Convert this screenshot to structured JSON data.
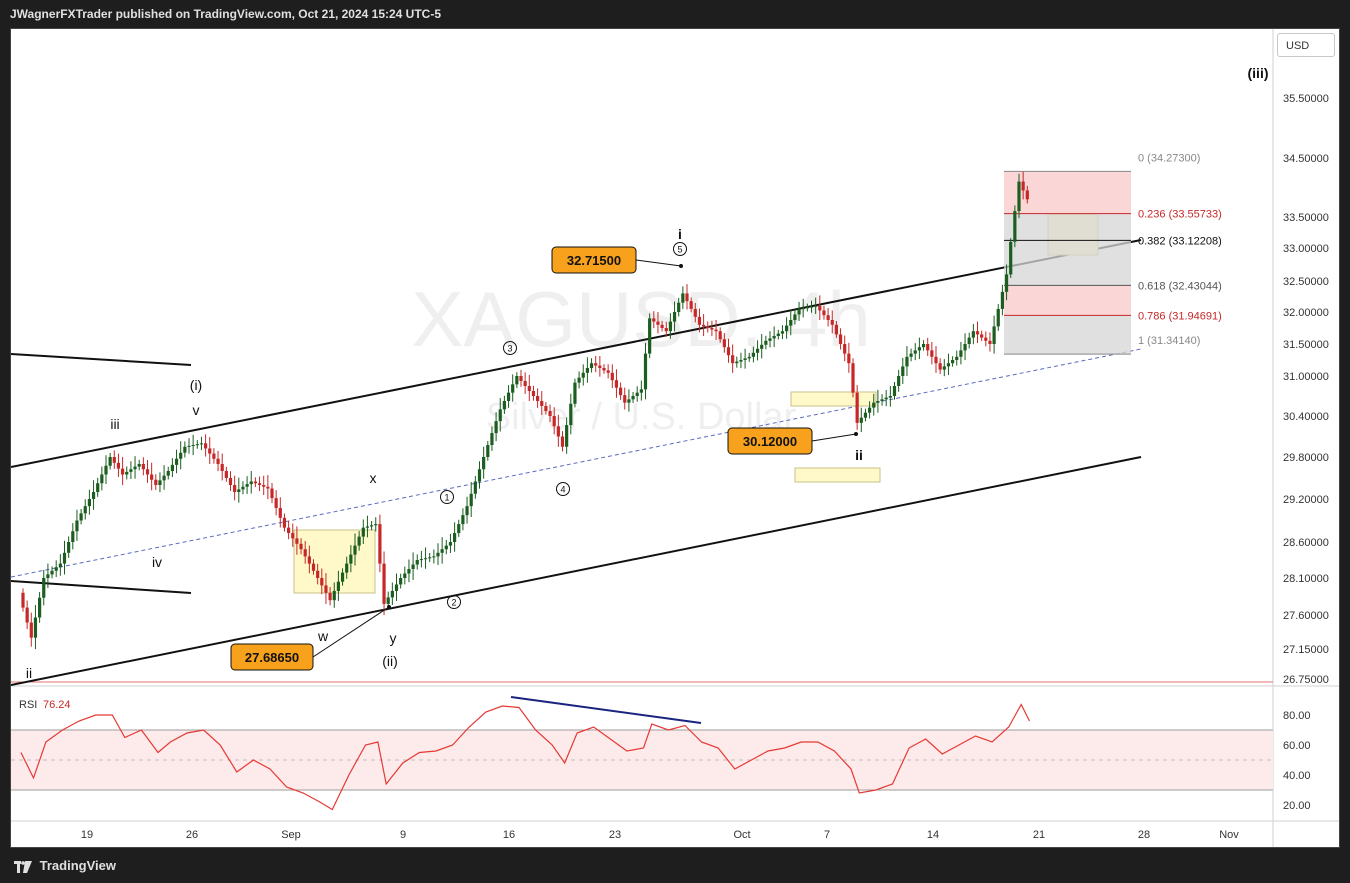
{
  "header": {
    "text": "JWagnerFXTrader published on TradingView.com, Oct 21, 2024 15:24 UTC-5"
  },
  "footer": {
    "brand": "TradingView"
  },
  "currency": "USD",
  "watermark": {
    "symbol": "XAGUSD, 4h",
    "name": "Silver / U.S. Dollar"
  },
  "colors": {
    "up": "#1b5e20",
    "down": "#c62828",
    "rsi": "#e53935",
    "fib_red": "#f8c8c8",
    "fib_gray": "#d6d6d6",
    "highlight": "#fff8c8",
    "divergence": "#1a237e"
  },
  "chart_data": {
    "type": "candlestick",
    "symbol": "XAGUSD",
    "timeframe": "4h",
    "y_ticks": [
      "35.50000",
      "34.50000",
      "33.50000",
      "33.00000",
      "32.50000",
      "32.00000",
      "31.50000",
      "31.00000",
      "30.40000",
      "29.80000",
      "29.20000",
      "28.60000",
      "28.10000",
      "27.60000",
      "27.15000",
      "26.75000"
    ],
    "x_ticks": [
      "19",
      "26",
      "Sep",
      "9",
      "16",
      "23",
      "Oct",
      "7",
      "14",
      "21",
      "28",
      "Nov"
    ],
    "price_path": [
      {
        "i": 0,
        "p": 27.9
      },
      {
        "i": 3,
        "p": 27.3
      },
      {
        "i": 6,
        "p": 28.1
      },
      {
        "i": 10,
        "p": 28.3
      },
      {
        "i": 14,
        "p": 28.9
      },
      {
        "i": 18,
        "p": 29.3
      },
      {
        "i": 22,
        "p": 29.8
      },
      {
        "i": 25,
        "p": 29.55
      },
      {
        "i": 29,
        "p": 29.7
      },
      {
        "i": 33,
        "p": 29.4
      },
      {
        "i": 36,
        "p": 29.6
      },
      {
        "i": 40,
        "p": 29.95
      },
      {
        "i": 44,
        "p": 30.0
      },
      {
        "i": 48,
        "p": 29.7
      },
      {
        "i": 52,
        "p": 29.3
      },
      {
        "i": 56,
        "p": 29.45
      },
      {
        "i": 60,
        "p": 29.35
      },
      {
        "i": 64,
        "p": 28.8
      },
      {
        "i": 68,
        "p": 28.5
      },
      {
        "i": 72,
        "p": 28.1
      },
      {
        "i": 75,
        "p": 27.8
      },
      {
        "i": 79,
        "p": 28.3
      },
      {
        "i": 83,
        "p": 28.8
      },
      {
        "i": 86,
        "p": 28.85
      },
      {
        "i": 88,
        "p": 27.75
      },
      {
        "i": 92,
        "p": 28.1
      },
      {
        "i": 96,
        "p": 28.35
      },
      {
        "i": 100,
        "p": 28.4
      },
      {
        "i": 104,
        "p": 28.6
      },
      {
        "i": 108,
        "p": 29.1
      },
      {
        "i": 112,
        "p": 29.8
      },
      {
        "i": 116,
        "p": 30.5
      },
      {
        "i": 120,
        "p": 31.0
      },
      {
        "i": 124,
        "p": 30.7
      },
      {
        "i": 128,
        "p": 30.4
      },
      {
        "i": 131,
        "p": 29.95
      },
      {
        "i": 134,
        "p": 30.9
      },
      {
        "i": 138,
        "p": 31.2
      },
      {
        "i": 142,
        "p": 31.05
      },
      {
        "i": 146,
        "p": 30.6
      },
      {
        "i": 150,
        "p": 30.8
      },
      {
        "i": 152,
        "p": 31.9
      },
      {
        "i": 156,
        "p": 31.7
      },
      {
        "i": 160,
        "p": 32.3
      },
      {
        "i": 164,
        "p": 31.8
      },
      {
        "i": 168,
        "p": 31.7
      },
      {
        "i": 172,
        "p": 31.2
      },
      {
        "i": 176,
        "p": 31.3
      },
      {
        "i": 180,
        "p": 31.55
      },
      {
        "i": 184,
        "p": 31.7
      },
      {
        "i": 188,
        "p": 32.05
      },
      {
        "i": 192,
        "p": 32.1
      },
      {
        "i": 196,
        "p": 31.8
      },
      {
        "i": 200,
        "p": 31.2
      },
      {
        "i": 202,
        "p": 30.3
      },
      {
        "i": 206,
        "p": 30.6
      },
      {
        "i": 210,
        "p": 30.7
      },
      {
        "i": 214,
        "p": 31.3
      },
      {
        "i": 218,
        "p": 31.5
      },
      {
        "i": 222,
        "p": 31.1
      },
      {
        "i": 226,
        "p": 31.3
      },
      {
        "i": 230,
        "p": 31.7
      },
      {
        "i": 234,
        "p": 31.5
      },
      {
        "i": 238,
        "p": 32.6
      },
      {
        "i": 241,
        "p": 34.1
      },
      {
        "i": 243,
        "p": 33.8
      }
    ],
    "rsi": {
      "label": "RSI",
      "value": "76.24",
      "ticks": [
        "80.00",
        "60.00",
        "40.00",
        "20.00"
      ],
      "upper": 70,
      "lower": 30,
      "path": [
        {
          "i": 0,
          "p": 55
        },
        {
          "i": 3,
          "p": 38
        },
        {
          "i": 6,
          "p": 62
        },
        {
          "i": 10,
          "p": 70
        },
        {
          "i": 14,
          "p": 76
        },
        {
          "i": 18,
          "p": 80
        },
        {
          "i": 22,
          "p": 80
        },
        {
          "i": 25,
          "p": 65
        },
        {
          "i": 29,
          "p": 70
        },
        {
          "i": 33,
          "p": 55
        },
        {
          "i": 36,
          "p": 62
        },
        {
          "i": 40,
          "p": 68
        },
        {
          "i": 44,
          "p": 70
        },
        {
          "i": 48,
          "p": 60
        },
        {
          "i": 52,
          "p": 42
        },
        {
          "i": 56,
          "p": 50
        },
        {
          "i": 60,
          "p": 44
        },
        {
          "i": 64,
          "p": 32
        },
        {
          "i": 68,
          "p": 28
        },
        {
          "i": 72,
          "p": 22
        },
        {
          "i": 75,
          "p": 17
        },
        {
          "i": 79,
          "p": 40
        },
        {
          "i": 83,
          "p": 60
        },
        {
          "i": 86,
          "p": 62
        },
        {
          "i": 88,
          "p": 34
        },
        {
          "i": 92,
          "p": 48
        },
        {
          "i": 96,
          "p": 55
        },
        {
          "i": 100,
          "p": 56
        },
        {
          "i": 104,
          "p": 60
        },
        {
          "i": 108,
          "p": 72
        },
        {
          "i": 112,
          "p": 82
        },
        {
          "i": 116,
          "p": 86
        },
        {
          "i": 120,
          "p": 85
        },
        {
          "i": 124,
          "p": 70
        },
        {
          "i": 128,
          "p": 60
        },
        {
          "i": 131,
          "p": 48
        },
        {
          "i": 134,
          "p": 68
        },
        {
          "i": 138,
          "p": 72
        },
        {
          "i": 142,
          "p": 64
        },
        {
          "i": 146,
          "p": 56
        },
        {
          "i": 150,
          "p": 58
        },
        {
          "i": 152,
          "p": 74
        },
        {
          "i": 156,
          "p": 70
        },
        {
          "i": 160,
          "p": 73
        },
        {
          "i": 164,
          "p": 62
        },
        {
          "i": 168,
          "p": 58
        },
        {
          "i": 172,
          "p": 44
        },
        {
          "i": 176,
          "p": 50
        },
        {
          "i": 180,
          "p": 56
        },
        {
          "i": 184,
          "p": 58
        },
        {
          "i": 188,
          "p": 62
        },
        {
          "i": 192,
          "p": 62
        },
        {
          "i": 196,
          "p": 56
        },
        {
          "i": 200,
          "p": 44
        },
        {
          "i": 202,
          "p": 28
        },
        {
          "i": 206,
          "p": 30
        },
        {
          "i": 210,
          "p": 34
        },
        {
          "i": 214,
          "p": 58
        },
        {
          "i": 218,
          "p": 64
        },
        {
          "i": 222,
          "p": 54
        },
        {
          "i": 226,
          "p": 60
        },
        {
          "i": 230,
          "p": 66
        },
        {
          "i": 234,
          "p": 62
        },
        {
          "i": 238,
          "p": 72
        },
        {
          "i": 241,
          "p": 87
        },
        {
          "i": 243,
          "p": 76
        }
      ]
    },
    "fibonacci": [
      {
        "ratio": "0",
        "value": "34.27300",
        "price": 34.273
      },
      {
        "ratio": "0.236",
        "value": "33.55733",
        "price": 33.55733
      },
      {
        "ratio": "0.382",
        "value": "33.12208",
        "price": 33.12208
      },
      {
        "ratio": "0.618",
        "value": "32.43044",
        "price": 32.43044
      },
      {
        "ratio": "0.786",
        "value": "31.94691",
        "price": 31.94691
      },
      {
        "ratio": "1",
        "value": "31.34140",
        "price": 31.3414
      }
    ],
    "price_labels": [
      {
        "text": "32.71500",
        "price": 32.715
      },
      {
        "text": "30.12000",
        "price": 30.12
      },
      {
        "text": "27.68650",
        "price": 27.6865
      }
    ],
    "wave_labels": [
      "ii",
      "iii",
      "iv",
      "v",
      "(i)",
      "w",
      "x",
      "y",
      "(ii)",
      "1",
      "2",
      "3",
      "4",
      "5",
      "i",
      "ii",
      "(iii)"
    ]
  }
}
